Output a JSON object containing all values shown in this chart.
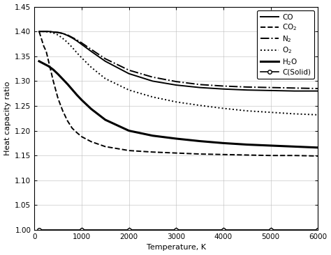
{
  "xlabel": "Temperature, K",
  "ylabel": "Heat capacity ratio",
  "xlim": [
    0,
    6000
  ],
  "ylim": [
    1.0,
    1.45
  ],
  "yticks": [
    1.0,
    1.05,
    1.1,
    1.15,
    1.2,
    1.25,
    1.3,
    1.35,
    1.4,
    1.45
  ],
  "xticks": [
    0,
    1000,
    2000,
    3000,
    4000,
    5000,
    6000
  ],
  "background_color": "#ffffff",
  "series": [
    {
      "label": "CO",
      "linestyle": "solid",
      "linewidth": 1.4,
      "color": "#000000",
      "marker": null,
      "T": [
        100,
        200,
        300,
        400,
        500,
        600,
        700,
        800,
        900,
        1000,
        1200,
        1500,
        2000,
        2500,
        3000,
        3500,
        4000,
        4500,
        5000,
        5500,
        6000
      ],
      "gamma": [
        1.4,
        1.4,
        1.4,
        1.399,
        1.398,
        1.396,
        1.392,
        1.387,
        1.381,
        1.374,
        1.36,
        1.34,
        1.315,
        1.3,
        1.292,
        1.287,
        1.284,
        1.282,
        1.281,
        1.28,
        1.28
      ]
    },
    {
      "label": "CO$_2$",
      "linestyle": "dashed",
      "linewidth": 1.4,
      "color": "#000000",
      "marker": null,
      "T": [
        100,
        200,
        250,
        300,
        400,
        500,
        600,
        700,
        800,
        900,
        1000,
        1200,
        1500,
        2000,
        2500,
        3000,
        3500,
        4000,
        4500,
        5000,
        5500,
        6000
      ],
      "gamma": [
        1.4,
        1.37,
        1.36,
        1.34,
        1.3,
        1.265,
        1.24,
        1.22,
        1.205,
        1.196,
        1.188,
        1.178,
        1.168,
        1.16,
        1.157,
        1.155,
        1.153,
        1.152,
        1.151,
        1.15,
        1.15,
        1.149
      ]
    },
    {
      "label": "N$_2$",
      "linestyle": "dashdot",
      "linewidth": 1.4,
      "color": "#000000",
      "marker": null,
      "T": [
        100,
        200,
        300,
        400,
        500,
        600,
        700,
        800,
        900,
        1000,
        1200,
        1500,
        2000,
        2500,
        3000,
        3500,
        4000,
        4500,
        5000,
        5500,
        6000
      ],
      "gamma": [
        1.4,
        1.4,
        1.4,
        1.399,
        1.398,
        1.396,
        1.393,
        1.388,
        1.383,
        1.377,
        1.364,
        1.345,
        1.322,
        1.308,
        1.299,
        1.293,
        1.29,
        1.288,
        1.287,
        1.286,
        1.285
      ]
    },
    {
      "label": "O$_2$",
      "linestyle": "dotted",
      "linewidth": 1.4,
      "color": "#000000",
      "marker": null,
      "T": [
        100,
        200,
        300,
        400,
        500,
        600,
        700,
        800,
        900,
        1000,
        1200,
        1500,
        2000,
        2500,
        3000,
        3500,
        4000,
        4500,
        5000,
        5500,
        6000
      ],
      "gamma": [
        1.4,
        1.4,
        1.399,
        1.397,
        1.393,
        1.386,
        1.378,
        1.368,
        1.357,
        1.347,
        1.328,
        1.305,
        1.282,
        1.268,
        1.258,
        1.251,
        1.245,
        1.24,
        1.237,
        1.234,
        1.232
      ]
    },
    {
      "label": "H$_2$O",
      "linestyle": "solid",
      "linewidth": 2.2,
      "color": "#000000",
      "marker": null,
      "T": [
        100,
        200,
        300,
        400,
        500,
        600,
        700,
        800,
        900,
        1000,
        1200,
        1500,
        2000,
        2500,
        3000,
        3500,
        4000,
        4500,
        5000,
        5500,
        6000
      ],
      "gamma": [
        1.34,
        1.335,
        1.33,
        1.323,
        1.314,
        1.304,
        1.294,
        1.283,
        1.272,
        1.262,
        1.244,
        1.222,
        1.2,
        1.19,
        1.184,
        1.179,
        1.175,
        1.172,
        1.17,
        1.168,
        1.166
      ]
    },
    {
      "label": "C(Solid)",
      "linestyle": "solid",
      "linewidth": 1.2,
      "color": "#000000",
      "marker": "o",
      "markersize": 4,
      "markerfacecolor": "white",
      "markeredgecolor": "#000000",
      "markeredgewidth": 1.0,
      "markevery": 2,
      "T": [
        100,
        500,
        1000,
        1500,
        2000,
        2500,
        3000,
        3500,
        4000,
        4500,
        5000,
        5500,
        6000
      ],
      "gamma": [
        1.0,
        1.0,
        1.0,
        1.0,
        1.0,
        1.0,
        1.0,
        1.0,
        1.0,
        1.0,
        1.0,
        1.0,
        1.0
      ]
    }
  ]
}
